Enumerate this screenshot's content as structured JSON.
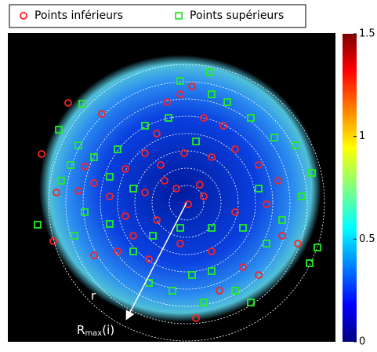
{
  "chart_data": {
    "type": "scatter",
    "xlim": [
      0,
      418
    ],
    "ylim": [
      393,
      0
    ],
    "series": [
      {
        "name": "Points inférieurs",
        "color": "#ff2020",
        "marker": "circle",
        "x": [
          77,
          120,
          43,
          62,
          58,
          98,
          110,
          90,
          130,
          150,
          175,
          190,
          203,
          220,
          235,
          250,
          275,
          290,
          320,
          345,
          330,
          290,
          250,
          230,
          215,
          245,
          190,
          160,
          140,
          180,
          220,
          260,
          300,
          320,
          270,
          240,
          350,
          370,
          110,
          200,
          175,
          150,
          225,
          260,
          195
        ],
        "values": [
          89,
          103,
          154,
          203,
          265,
          170,
          191,
          201,
          208,
          173,
          153,
          128,
          88,
          78,
          68,
          108,
          118,
          148,
          168,
          188,
          218,
          228,
          208,
          218,
          198,
          193,
          238,
          258,
          278,
          288,
          268,
          278,
          298,
          308,
          328,
          363,
          258,
          268,
          283,
          188,
          203,
          233,
          153,
          158,
          168
        ]
      },
      {
        "name": "Points supérieurs",
        "color": "#22ee22",
        "marker": "square",
        "x": [
          95,
          65,
          90,
          80,
          68,
          98,
          38,
          85,
          130,
          160,
          140,
          175,
          220,
          258,
          280,
          310,
          340,
          368,
          388,
          375,
          350,
          395,
          385,
          330,
          300,
          260,
          220,
          185,
          160,
          235,
          260,
          290,
          310,
          250,
          210,
          180,
          260,
          205,
          240,
          320,
          130,
          110
        ],
        "values": [
          90,
          123,
          143,
          168,
          188,
          228,
          244,
          258,
          243,
          198,
          148,
          118,
          61,
          50,
          88,
          108,
          133,
          143,
          178,
          208,
          238,
          273,
          293,
          268,
          248,
          248,
          248,
          258,
          278,
          308,
          303,
          328,
          343,
          343,
          328,
          318,
          78,
          108,
          138,
          198,
          183,
          158
        ]
      }
    ],
    "annotations": {
      "r": "r",
      "rmax": {
        "base": "R",
        "sub": "max",
        "tail": "(i)"
      }
    },
    "colorbar": {
      "lim": [
        0,
        1.5
      ],
      "ticks": [
        0,
        0.5,
        1,
        1.5
      ]
    }
  }
}
